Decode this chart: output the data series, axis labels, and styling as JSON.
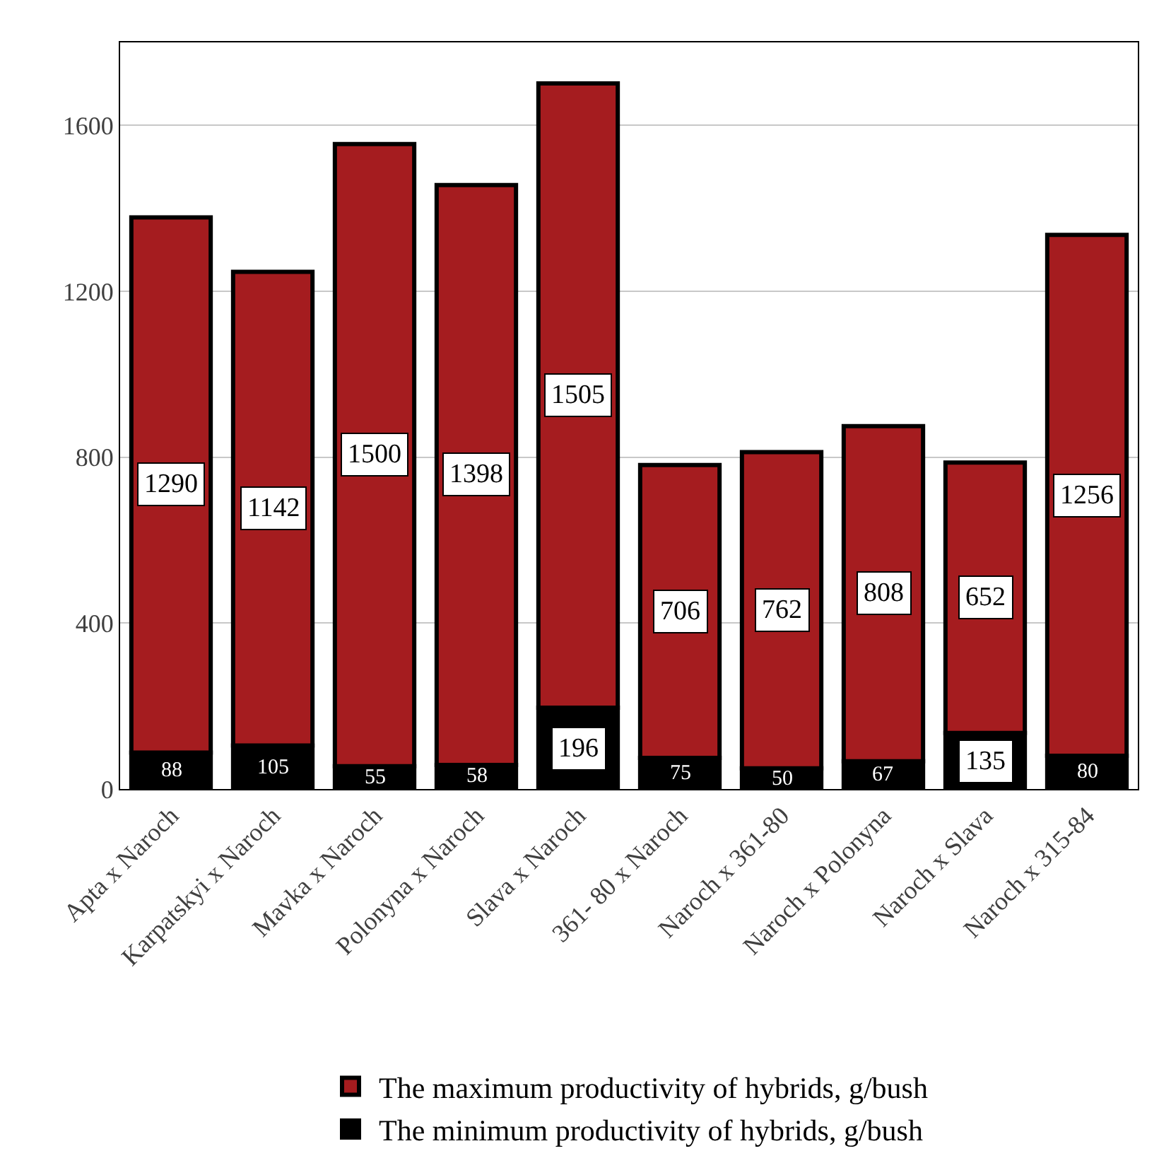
{
  "chart_data": {
    "type": "bar",
    "stacked": true,
    "categories": [
      "Apta x Naroch",
      "Karpatskyi x Naroch",
      "Mavka x Naroch",
      "Polonyna x Naroch",
      "Slava x Naroch",
      "361- 80 x Naroch",
      "Naroch x 361-80",
      "Naroch x Polonyna",
      "Naroch x Slava",
      "Naroch x 315-84"
    ],
    "series": [
      {
        "name": "The minimum productivity of hybrids, g/bush",
        "color": "#000000",
        "values": [
          88,
          105,
          55,
          58,
          196,
          75,
          50,
          67,
          135,
          80
        ]
      },
      {
        "name": "The maximum productivity of hybrids, g/bush",
        "color": "#a51c1f",
        "values": [
          1290,
          1142,
          1500,
          1398,
          1505,
          706,
          762,
          808,
          652,
          1256
        ]
      }
    ],
    "data_labels": true,
    "ylim": [
      0,
      1800
    ],
    "yticks": [
      0,
      400,
      800,
      1200,
      1600
    ],
    "grid": "y",
    "legend": "bottom"
  }
}
